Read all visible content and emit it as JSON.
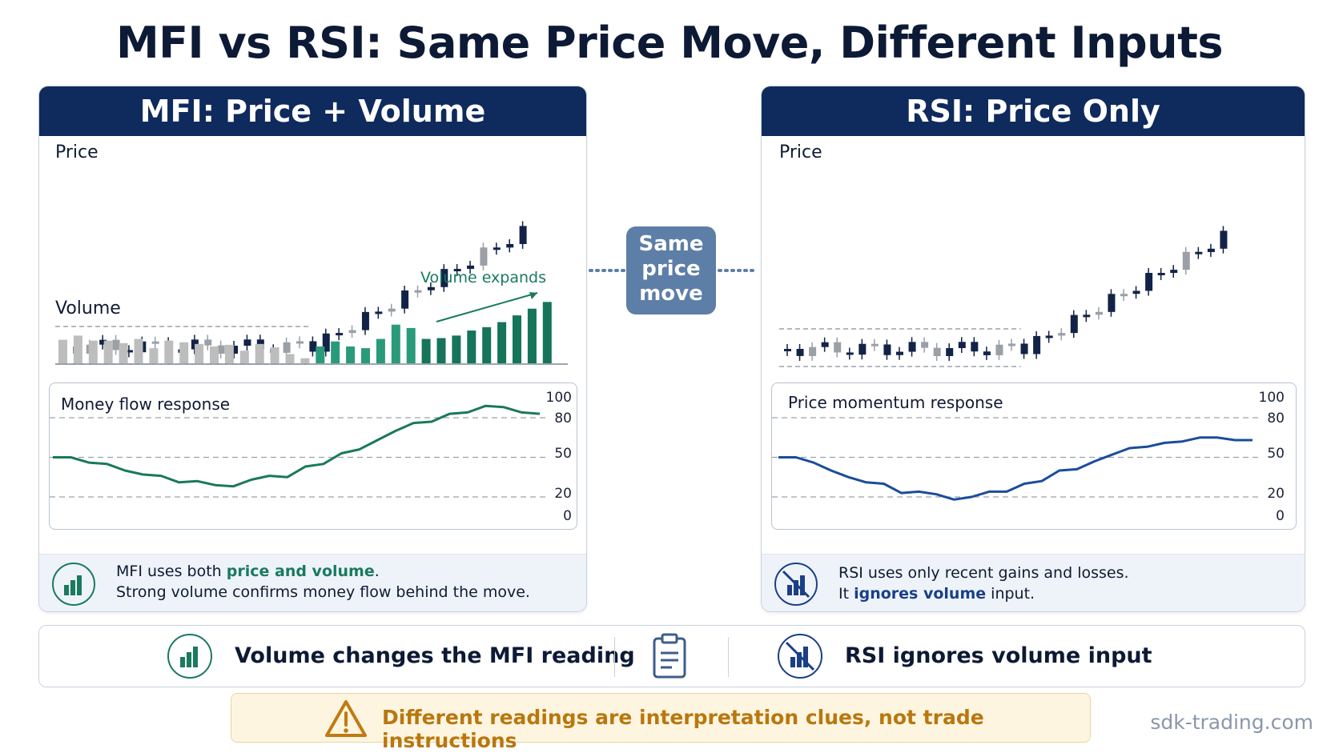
{
  "title": "MFI vs RSI: Same Price Move, Different Inputs",
  "left_panel": {
    "header": "MFI: Price + Volume",
    "price_label": "Price",
    "volume_label": "Volume",
    "volume_note": "Volume expands",
    "response_title": "Money flow response",
    "footer_line1_prefix": "MFI uses both ",
    "footer_line1_highlight": "price and volume",
    "footer_line1_suffix": ".",
    "footer_line2": "Strong volume confirms money flow behind the move.",
    "footer_icon": "bar-chart-icon"
  },
  "right_panel": {
    "header": "RSI: Price Only",
    "price_label": "Price",
    "response_title": "Price momentum response",
    "footer_line1": "RSI uses only recent gains and losses.",
    "footer_line2_prefix": "It ",
    "footer_line2_highlight": "ignores volume",
    "footer_line2_suffix": " input.",
    "footer_icon": "no-volume-icon"
  },
  "center_badge": [
    "Same",
    "price",
    "move"
  ],
  "summary": {
    "left_text": "Volume changes the MFI reading",
    "right_text": "RSI ignores volume input",
    "middle_icon": "clipboard-icon"
  },
  "warning": {
    "text": "Different readings are interpretation clues, not trade instructions",
    "icon": "warning-icon"
  },
  "brand": "sdk-trading.com",
  "oscillator_ticks": [
    "100",
    "80",
    "50",
    "20",
    "0"
  ],
  "chart_data": [
    {
      "type": "line",
      "title": "Money flow response",
      "ylim": [
        0,
        100
      ],
      "reference_lines": [
        80,
        50,
        20
      ],
      "series": [
        {
          "color": "#1a7a55",
          "values": [
            50,
            50,
            46,
            45,
            40,
            37,
            36,
            31,
            32,
            29,
            28,
            33,
            36,
            35,
            43,
            45,
            53,
            56,
            63,
            70,
            76,
            77,
            83,
            84,
            89,
            88,
            84,
            83
          ]
        }
      ]
    },
    {
      "type": "line",
      "title": "Price momentum response",
      "ylim": [
        0,
        100
      ],
      "reference_lines": [
        80,
        50,
        20
      ],
      "series": [
        {
          "color": "#1b4c9b",
          "values": [
            50,
            50,
            46,
            40,
            35,
            31,
            30,
            23,
            24,
            22,
            18,
            20,
            24,
            24,
            30,
            32,
            40,
            41,
            47,
            52,
            57,
            58,
            61,
            62,
            65,
            65,
            63,
            63
          ]
        }
      ]
    },
    {
      "type": "bar",
      "title": "Volume",
      "values": [
        28,
        33,
        27,
        27,
        24,
        29,
        18,
        27,
        25,
        23,
        20,
        22,
        15,
        23,
        19,
        11,
        6,
        20,
        26,
        20,
        18,
        29,
        46,
        42,
        29,
        30,
        33,
        39,
        43,
        49,
        57,
        65,
        73
      ],
      "highlight_from_index": 17
    }
  ]
}
